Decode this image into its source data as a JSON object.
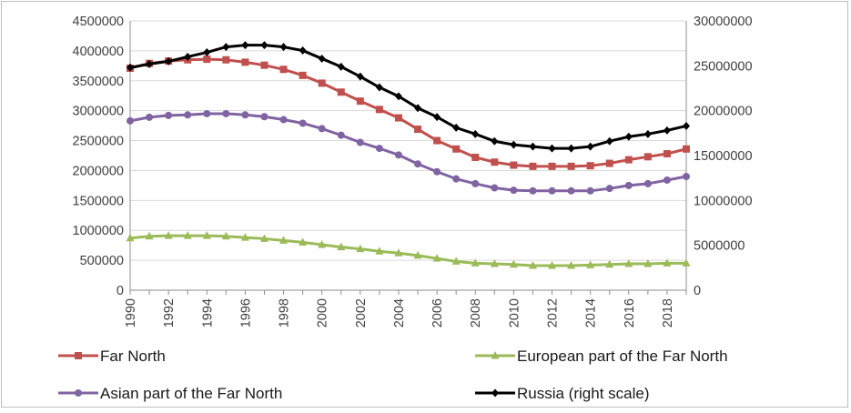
{
  "chart_data": {
    "type": "line",
    "title": "",
    "xlabel": "",
    "ylabel": "",
    "x": [
      1990,
      1991,
      1992,
      1993,
      1994,
      1995,
      1996,
      1997,
      1998,
      1999,
      2000,
      2001,
      2002,
      2003,
      2004,
      2005,
      2006,
      2007,
      2008,
      2009,
      2010,
      2011,
      2012,
      2013,
      2014,
      2015,
      2016,
      2017,
      2018,
      2019
    ],
    "x_tick_labels": [
      "1990",
      "1992",
      "1994",
      "1996",
      "1998",
      "2000",
      "2002",
      "2004",
      "2006",
      "2008",
      "2010",
      "2012",
      "2014",
      "2016",
      "2018"
    ],
    "left_axis": {
      "ylim": [
        0,
        4500000
      ],
      "ticks": [
        "0",
        "500000",
        "1000000",
        "1500000",
        "2000000",
        "2500000",
        "3000000",
        "3500000",
        "4000000",
        "4500000"
      ]
    },
    "right_axis": {
      "ylim": [
        0,
        30000000
      ],
      "ticks": [
        "0",
        "5000000",
        "10000000",
        "15000000",
        "20000000",
        "25000000",
        "30000000"
      ]
    },
    "gridlines": true,
    "legend_position": "bottom",
    "series": [
      {
        "name": "Far North",
        "axis": "left",
        "color": "#c0504d",
        "marker": "square",
        "values": [
          3710000,
          3790000,
          3830000,
          3850000,
          3860000,
          3850000,
          3810000,
          3760000,
          3690000,
          3590000,
          3460000,
          3310000,
          3160000,
          3020000,
          2880000,
          2690000,
          2500000,
          2360000,
          2220000,
          2140000,
          2090000,
          2070000,
          2070000,
          2070000,
          2080000,
          2120000,
          2180000,
          2230000,
          2280000,
          2360000
        ]
      },
      {
        "name": "European part of the Far North",
        "axis": "left",
        "color": "#9bbb59",
        "marker": "triangle",
        "values": [
          870000,
          900000,
          910000,
          910000,
          910000,
          900000,
          880000,
          860000,
          830000,
          800000,
          760000,
          720000,
          690000,
          650000,
          620000,
          580000,
          530000,
          480000,
          450000,
          440000,
          430000,
          410000,
          410000,
          410000,
          420000,
          430000,
          440000,
          440000,
          450000,
          450000
        ]
      },
      {
        "name": "Asian part of the Far North",
        "axis": "left",
        "color": "#8064a2",
        "marker": "circle",
        "values": [
          2830000,
          2890000,
          2920000,
          2930000,
          2950000,
          2950000,
          2930000,
          2900000,
          2850000,
          2790000,
          2700000,
          2590000,
          2470000,
          2370000,
          2260000,
          2110000,
          1980000,
          1860000,
          1780000,
          1710000,
          1670000,
          1660000,
          1660000,
          1660000,
          1660000,
          1700000,
          1750000,
          1780000,
          1840000,
          1900000
        ]
      },
      {
        "name": "Russia (right scale)",
        "axis": "right",
        "color": "#000000",
        "marker": "diamond",
        "values": [
          24800000,
          25200000,
          25500000,
          26000000,
          26500000,
          27100000,
          27300000,
          27300000,
          27100000,
          26700000,
          25800000,
          24900000,
          23800000,
          22600000,
          21600000,
          20300000,
          19300000,
          18100000,
          17400000,
          16600000,
          16200000,
          16000000,
          15800000,
          15800000,
          16000000,
          16600000,
          17100000,
          17400000,
          17800000,
          18300000
        ]
      }
    ]
  }
}
